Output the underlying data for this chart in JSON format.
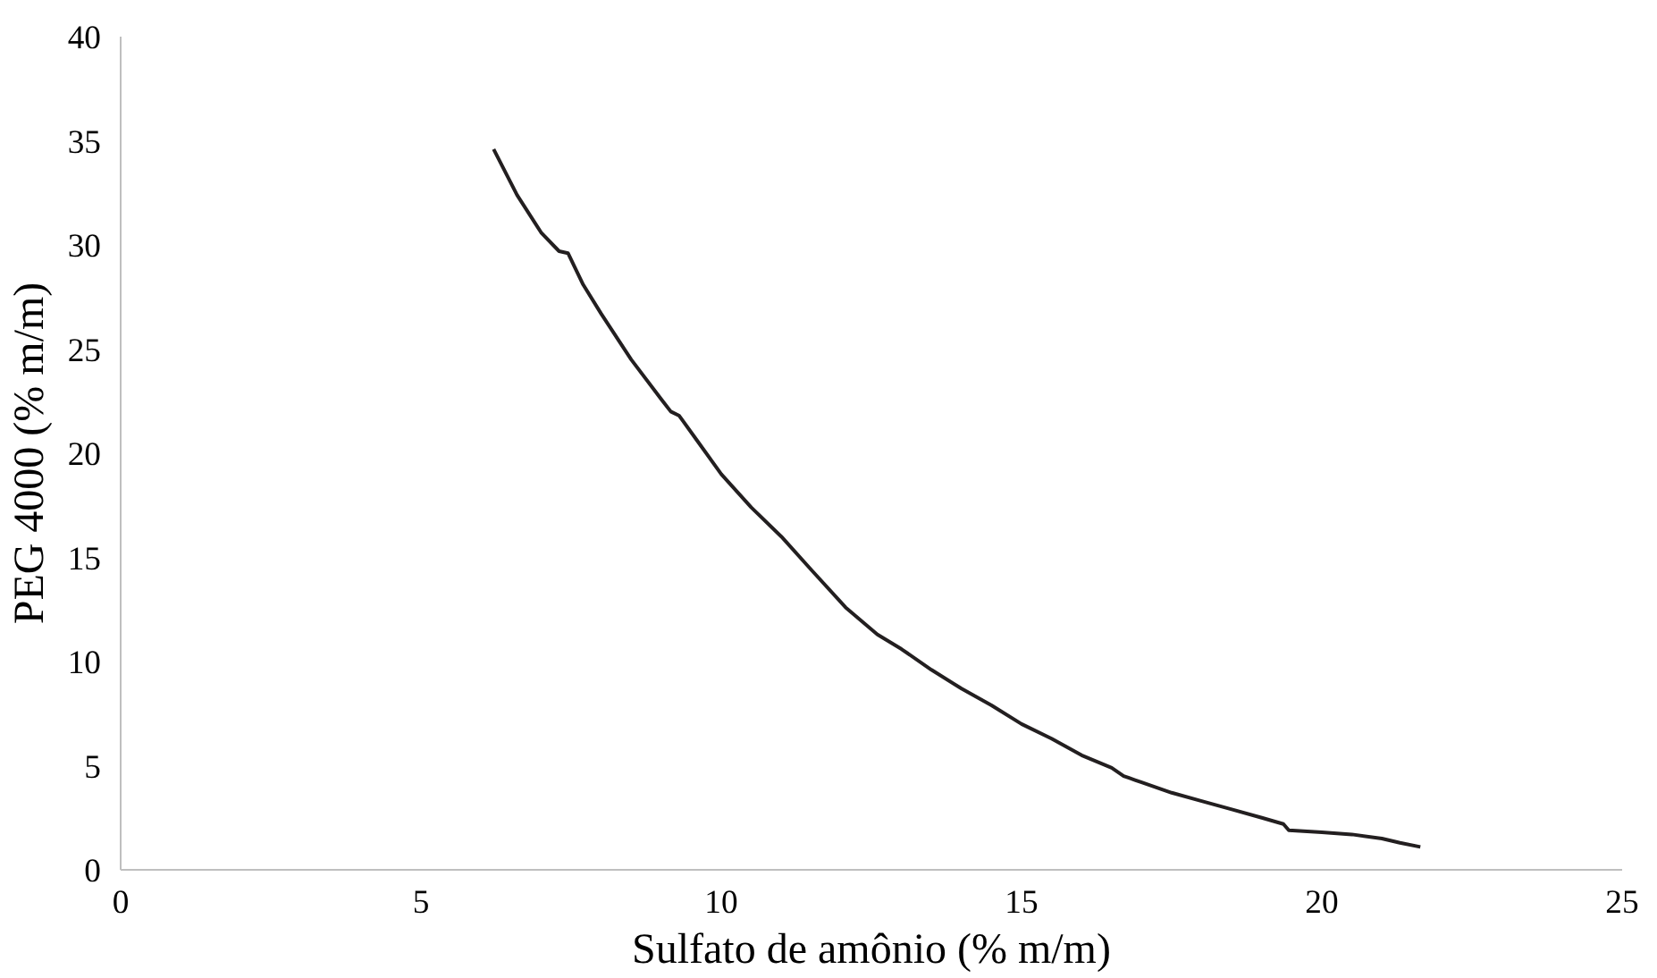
{
  "chart_data": {
    "type": "line",
    "xlabel": "Sulfato de amônio (% m/m)",
    "ylabel": "PEG 4000 (% m/m)",
    "xlim": [
      0,
      25
    ],
    "ylim": [
      0,
      40
    ],
    "xticks": [
      0,
      5,
      10,
      15,
      20,
      25
    ],
    "yticks": [
      0,
      5,
      10,
      15,
      20,
      25,
      30,
      35,
      40
    ],
    "grid": false,
    "series": [
      {
        "color": "#231f20",
        "x": [
          6.21,
          6.6,
          7.0,
          7.3,
          7.45,
          7.7,
          8.0,
          8.5,
          9.0,
          9.16,
          9.3,
          9.6,
          10.0,
          10.5,
          11.0,
          11.5,
          12.07,
          12.6,
          13.0,
          13.5,
          14.0,
          14.5,
          15.0,
          15.5,
          16.0,
          16.5,
          16.7,
          16.8,
          17.0,
          17.5,
          18.0,
          18.5,
          19.0,
          19.36,
          19.45,
          20.0,
          20.5,
          21.0,
          21.3,
          21.64
        ],
        "values": [
          34.6,
          32.4,
          30.6,
          29.7,
          29.6,
          28.1,
          26.7,
          24.5,
          22.6,
          22.0,
          21.8,
          20.6,
          19.0,
          17.4,
          16.0,
          14.4,
          12.6,
          11.3,
          10.6,
          9.6,
          8.7,
          7.9,
          7.0,
          6.3,
          5.5,
          4.9,
          4.5,
          4.4,
          4.2,
          3.7,
          3.3,
          2.9,
          2.5,
          2.2,
          1.9,
          1.8,
          1.7,
          1.5,
          1.3,
          1.1
        ]
      }
    ]
  }
}
